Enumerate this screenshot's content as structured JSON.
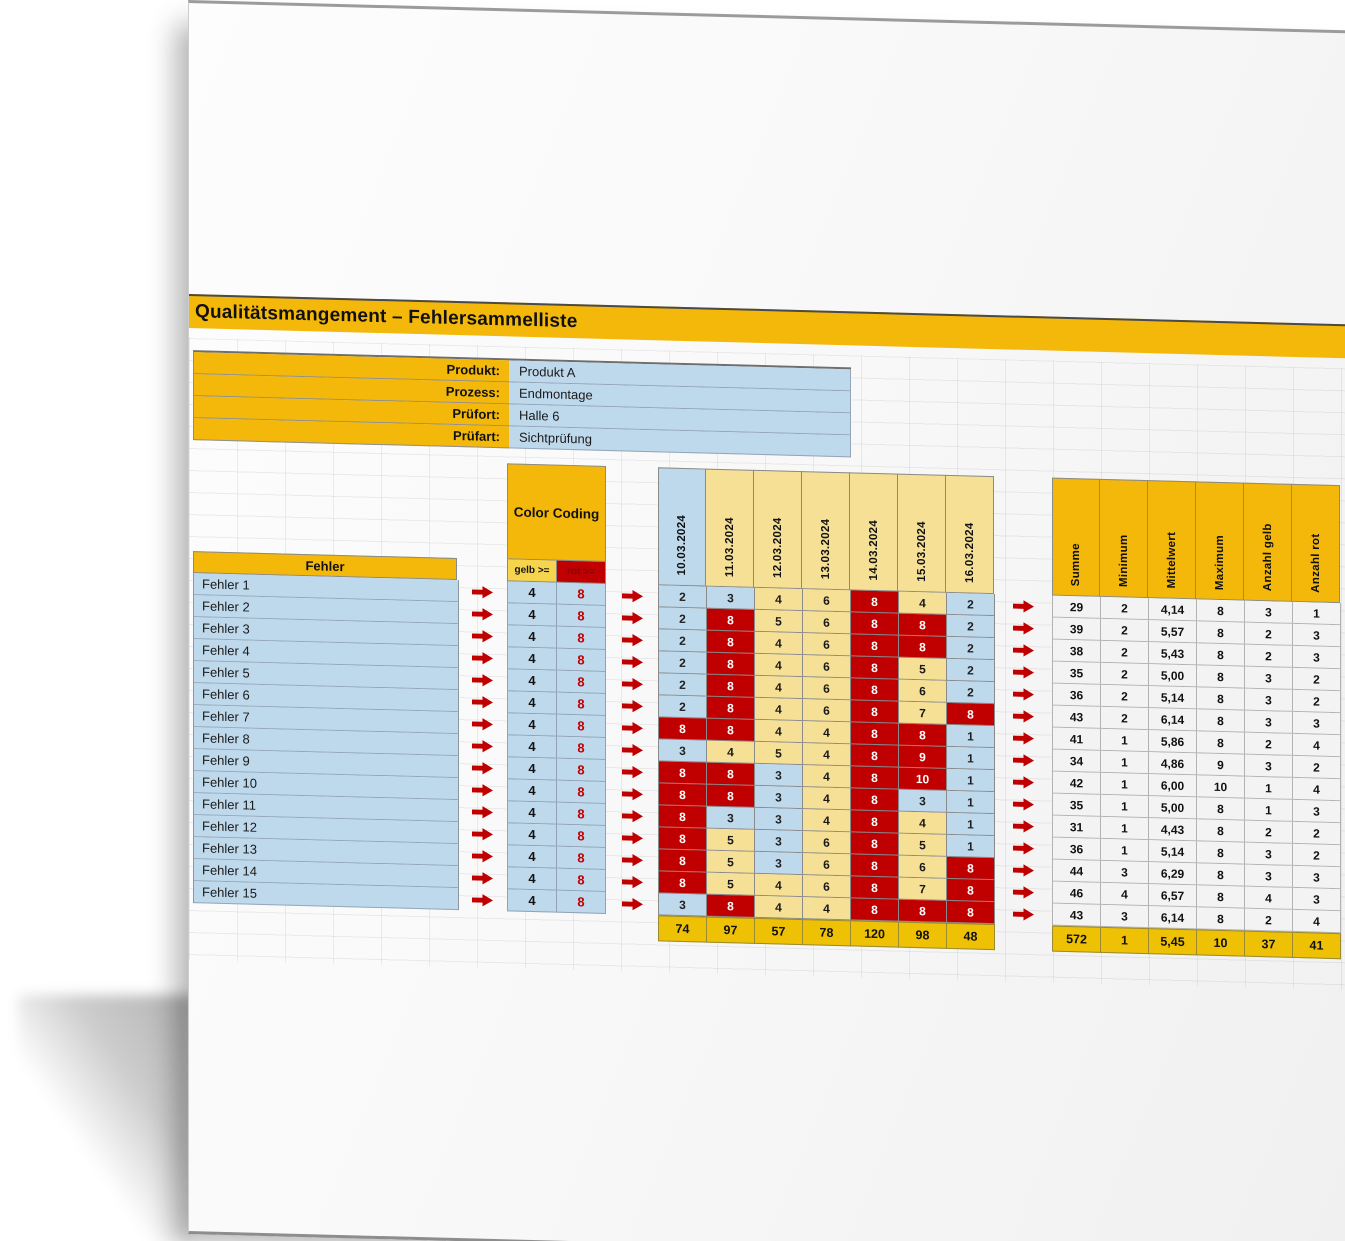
{
  "page": {
    "title": "Qualitätsmangement – Fehlersammelliste"
  },
  "meta": {
    "rows": [
      {
        "label": "Produkt:",
        "value": "Produkt A"
      },
      {
        "label": "Prozess:",
        "value": "Endmontage"
      },
      {
        "label": "Prüfort:",
        "value": "Halle 6"
      },
      {
        "label": "Prüfart:",
        "value": "Sichtprüfung"
      }
    ]
  },
  "color_coding": {
    "title": "Color Coding",
    "gelb_label": "gelb >=",
    "rot_label": "rot >="
  },
  "fehler_table": {
    "header": "Fehler"
  },
  "chart_data": {
    "type": "table",
    "title": "Qualitätsmangement – Fehlersammelliste",
    "thresholds": {
      "gelb": 4,
      "rot": 8
    },
    "columns": [
      "10.03.2024",
      "11.03.2024",
      "12.03.2024",
      "13.03.2024",
      "14.03.2024",
      "15.03.2024",
      "16.03.2024"
    ],
    "column_header_colors": [
      "#BFD9EC",
      "#F6E096",
      "#F6E096",
      "#F6E096",
      "#F6E096",
      "#F6E096",
      "#F6E096"
    ],
    "rows": [
      {
        "label": "Fehler 1",
        "values": [
          2,
          3,
          4,
          6,
          8,
          4,
          2
        ]
      },
      {
        "label": "Fehler 2",
        "values": [
          2,
          8,
          5,
          6,
          8,
          8,
          2
        ]
      },
      {
        "label": "Fehler 3",
        "values": [
          2,
          8,
          4,
          6,
          8,
          8,
          2
        ]
      },
      {
        "label": "Fehler 4",
        "values": [
          2,
          8,
          4,
          6,
          8,
          5,
          2
        ]
      },
      {
        "label": "Fehler 5",
        "values": [
          2,
          8,
          4,
          6,
          8,
          6,
          2
        ]
      },
      {
        "label": "Fehler 6",
        "values": [
          2,
          8,
          4,
          6,
          8,
          7,
          8
        ]
      },
      {
        "label": "Fehler 7",
        "values": [
          8,
          8,
          4,
          4,
          8,
          8,
          1
        ]
      },
      {
        "label": "Fehler 8",
        "values": [
          3,
          4,
          5,
          4,
          8,
          9,
          1
        ]
      },
      {
        "label": "Fehler 9",
        "values": [
          8,
          8,
          3,
          4,
          8,
          10,
          1
        ]
      },
      {
        "label": "Fehler 10",
        "values": [
          8,
          8,
          3,
          4,
          8,
          3,
          1
        ]
      },
      {
        "label": "Fehler 11",
        "values": [
          8,
          3,
          3,
          4,
          8,
          4,
          1
        ]
      },
      {
        "label": "Fehler 12",
        "values": [
          8,
          5,
          3,
          6,
          8,
          5,
          1
        ]
      },
      {
        "label": "Fehler 13",
        "values": [
          8,
          5,
          3,
          6,
          8,
          6,
          8
        ]
      },
      {
        "label": "Fehler 14",
        "values": [
          8,
          5,
          4,
          6,
          8,
          7,
          8
        ]
      },
      {
        "label": "Fehler 15",
        "values": [
          3,
          8,
          4,
          4,
          8,
          8,
          8
        ]
      }
    ],
    "column_sums": [
      "74",
      "97",
      "57",
      "78",
      "120",
      "98",
      "48"
    ],
    "summary_columns": [
      "Summe",
      "Minimum",
      "Mittelwert",
      "Maximum",
      "Anzahl gelb",
      "Anzahl rot"
    ],
    "summary_rows": [
      [
        "29",
        "2",
        "4,14",
        "8",
        "3",
        "1"
      ],
      [
        "39",
        "2",
        "5,57",
        "8",
        "2",
        "3"
      ],
      [
        "38",
        "2",
        "5,43",
        "8",
        "2",
        "3"
      ],
      [
        "35",
        "2",
        "5,00",
        "8",
        "3",
        "2"
      ],
      [
        "36",
        "2",
        "5,14",
        "8",
        "3",
        "2"
      ],
      [
        "43",
        "2",
        "6,14",
        "8",
        "3",
        "3"
      ],
      [
        "41",
        "1",
        "5,86",
        "8",
        "2",
        "4"
      ],
      [
        "34",
        "1",
        "4,86",
        "9",
        "3",
        "2"
      ],
      [
        "42",
        "1",
        "6,00",
        "10",
        "1",
        "4"
      ],
      [
        "35",
        "1",
        "5,00",
        "8",
        "1",
        "3"
      ],
      [
        "31",
        "1",
        "4,43",
        "8",
        "2",
        "2"
      ],
      [
        "36",
        "1",
        "5,14",
        "8",
        "3",
        "2"
      ],
      [
        "44",
        "3",
        "6,29",
        "8",
        "3",
        "3"
      ],
      [
        "46",
        "4",
        "6,57",
        "8",
        "4",
        "3"
      ],
      [
        "43",
        "3",
        "6,14",
        "8",
        "2",
        "4"
      ]
    ],
    "summary_totals": [
      "572",
      "1",
      "5,45",
      "10",
      "37",
      "41"
    ]
  },
  "colors": {
    "gold": "#F3B80A",
    "gold_sum": "#EEC104",
    "light_yellow": "#F6E096",
    "threshold_yellow": "#F7D44E",
    "red": "#C00000",
    "red_label_text": "#8B0000",
    "light_blue": "#BFD9EC",
    "summary_row_bg": "#F3F3F3",
    "arrow": "#C00000"
  }
}
